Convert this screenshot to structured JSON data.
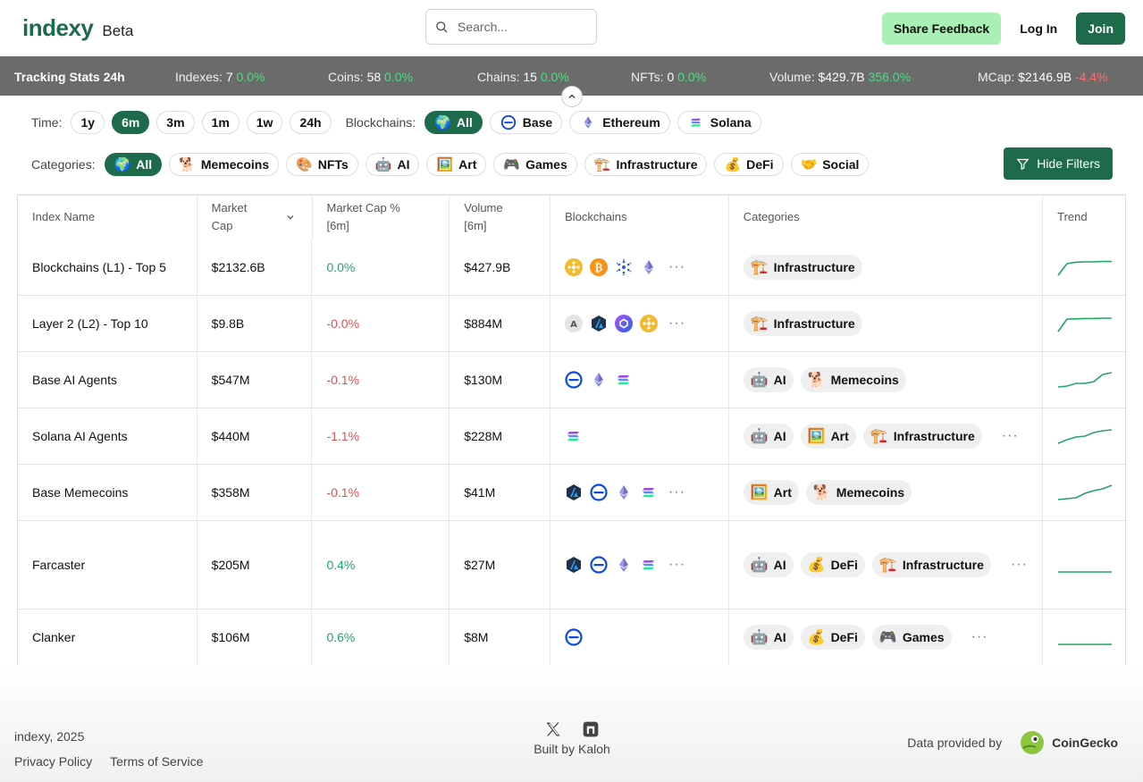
{
  "header": {
    "logo": "indexy",
    "beta": "Beta",
    "search_placeholder": "Search...",
    "share_feedback": "Share Feedback",
    "login": "Log In",
    "join": "Join"
  },
  "stats": {
    "title": "Tracking Stats 24h",
    "items": [
      {
        "label": "Indexes:",
        "value": "7",
        "change": "0.0%",
        "trend": "pos"
      },
      {
        "label": "Coins:",
        "value": "58",
        "change": "0.0%",
        "trend": "pos"
      },
      {
        "label": "Chains:",
        "value": "15",
        "change": "0.0%",
        "trend": "pos"
      },
      {
        "label": "NFTs:",
        "value": "0",
        "change": "0.0%",
        "trend": "pos"
      },
      {
        "label": "Volume:",
        "value": "$429.7B",
        "change": "356.0%",
        "trend": "pos"
      },
      {
        "label": "MCap:",
        "value": "$2146.9B",
        "change": "-4.4%",
        "trend": "neg"
      }
    ]
  },
  "filters": {
    "time_label": "Time:",
    "time_options": [
      "1y",
      "6m",
      "3m",
      "1m",
      "1w",
      "24h"
    ],
    "time_selected": "6m",
    "blockchains_label": "Blockchains:",
    "blockchains": [
      {
        "label": "All",
        "emoji": "🌍",
        "active": true
      },
      {
        "label": "Base",
        "emoji": "",
        "active": false
      },
      {
        "label": "Ethereum",
        "emoji": "",
        "active": false
      },
      {
        "label": "Solana",
        "emoji": "",
        "active": false
      }
    ],
    "categories_label": "Categories:",
    "categories": [
      {
        "label": "All",
        "emoji": "🌍",
        "active": true
      },
      {
        "label": "Memecoins",
        "emoji": "🐕",
        "active": false
      },
      {
        "label": "NFTs",
        "emoji": "🎨",
        "active": false
      },
      {
        "label": "AI",
        "emoji": "🤖",
        "active": false
      },
      {
        "label": "Art",
        "emoji": "🖼️",
        "active": false
      },
      {
        "label": "Games",
        "emoji": "🎮",
        "active": false
      },
      {
        "label": "Infrastructure",
        "emoji": "🏗️",
        "active": false
      },
      {
        "label": "DeFi",
        "emoji": "💰",
        "active": false
      },
      {
        "label": "Social",
        "emoji": "🤝",
        "active": false
      }
    ],
    "hide_filters": "Hide Filters"
  },
  "table": {
    "columns": [
      "Index Name",
      "Market Cap",
      "Market Cap % [6m]",
      "Volume [6m]",
      "Blockchains",
      "Categories",
      "Trend"
    ],
    "rows": [
      {
        "name": "Blockchains (L1) - Top 5",
        "mcap": "$2132.6B",
        "pct": "0.0%",
        "trend": "pos",
        "volume": "$427.9B",
        "chains": [
          "bnb",
          "btc",
          "ada",
          "eth"
        ],
        "more_chains": true,
        "cats": [
          {
            "emoji": "🏗️",
            "label": "Infrastructure"
          }
        ],
        "more_cats": false,
        "spark": [
          0.05,
          0.7,
          0.78,
          0.8,
          0.8,
          0.82,
          0.82
        ]
      },
      {
        "name": "Layer 2 (L2) - Top 10",
        "mcap": "$9.8B",
        "pct": "-0.0%",
        "trend": "neg",
        "volume": "$884M",
        "chains": [
          "a",
          "arb",
          "poly",
          "bnb"
        ],
        "more_chains": true,
        "cats": [
          {
            "emoji": "🏗️",
            "label": "Infrastructure"
          }
        ],
        "more_cats": false,
        "spark": [
          0.05,
          0.75,
          0.76,
          0.78,
          0.78,
          0.8,
          0.8
        ]
      },
      {
        "name": "Base AI Agents",
        "mcap": "$547M",
        "pct": "-0.1%",
        "trend": "neg",
        "volume": "$130M",
        "chains": [
          "base",
          "eth",
          "sol"
        ],
        "more_chains": false,
        "cats": [
          {
            "emoji": "🤖",
            "label": "AI"
          },
          {
            "emoji": "🐕",
            "label": "Memecoins"
          }
        ],
        "more_cats": false,
        "spark": [
          0.1,
          0.15,
          0.3,
          0.3,
          0.4,
          0.8,
          0.9
        ]
      },
      {
        "name": "Solana AI Agents",
        "mcap": "$440M",
        "pct": "-1.1%",
        "trend": "neg",
        "volume": "$228M",
        "chains": [
          "sol"
        ],
        "more_chains": false,
        "cats": [
          {
            "emoji": "🤖",
            "label": "AI"
          },
          {
            "emoji": "🖼️",
            "label": "Art"
          },
          {
            "emoji": "🏗️",
            "label": "Infrastructure"
          }
        ],
        "more_cats": true,
        "spark": [
          0.1,
          0.3,
          0.45,
          0.5,
          0.7,
          0.8,
          0.85
        ]
      },
      {
        "name": "Base Memecoins",
        "mcap": "$358M",
        "pct": "-0.1%",
        "trend": "neg",
        "volume": "$41M",
        "chains": [
          "arb",
          "base",
          "eth",
          "sol"
        ],
        "more_chains": true,
        "cats": [
          {
            "emoji": "🖼️",
            "label": "Art"
          },
          {
            "emoji": "🐕",
            "label": "Memecoins"
          }
        ],
        "more_cats": false,
        "spark": [
          0.1,
          0.15,
          0.2,
          0.45,
          0.6,
          0.7,
          0.9
        ]
      },
      {
        "name": "Farcaster",
        "mcap": "$205M",
        "pct": "0.4%",
        "trend": "pos",
        "volume": "$27M",
        "chains": [
          "arb",
          "base",
          "eth",
          "sol"
        ],
        "more_chains": true,
        "cats": [
          {
            "emoji": "🤖",
            "label": "AI"
          },
          {
            "emoji": "💰",
            "label": "DeFi"
          },
          {
            "emoji": "🏗️",
            "label": "Infrastructure"
          }
        ],
        "more_cats": true,
        "spark": [
          0.1,
          0.1,
          0.1,
          0.1,
          0.1,
          0.1,
          0.1
        ]
      },
      {
        "name": "Clanker",
        "mcap": "$106M",
        "pct": "0.6%",
        "trend": "pos",
        "volume": "$8M",
        "chains": [
          "base"
        ],
        "more_chains": false,
        "cats": [
          {
            "emoji": "🤖",
            "label": "AI"
          },
          {
            "emoji": "💰",
            "label": "DeFi"
          },
          {
            "emoji": "🎮",
            "label": "Games"
          }
        ],
        "more_cats": true,
        "spark": [
          0.1,
          0.1,
          0.1,
          0.1,
          0.1,
          0.1,
          0.1
        ]
      }
    ]
  },
  "footer": {
    "copyright": "indexy, 2025",
    "privacy": "Privacy Policy",
    "terms": "Terms of Service",
    "built_by": "Built by Kaloh",
    "data_provided": "Data provided by",
    "provider": "CoinGecko"
  },
  "colors": {
    "brand": "#1e6b4c",
    "feedback": "#a8f0b4",
    "positive": "#22a565",
    "negative": "#e05050"
  }
}
